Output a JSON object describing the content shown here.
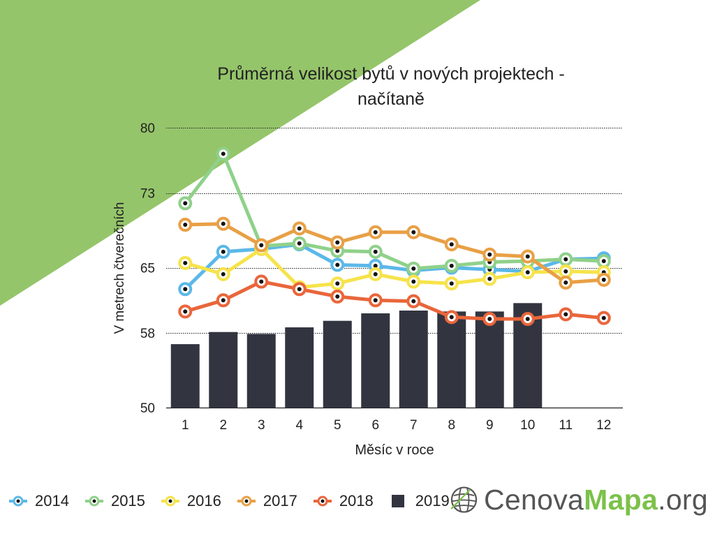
{
  "chart_data": {
    "type": "line",
    "title_line1": "Průměrná velikost bytů v nových projektech -",
    "title_line2": "načítaně",
    "xlabel": "Měsíc v roce",
    "ylabel": "V metrech čtverečních",
    "categories": [
      "1",
      "2",
      "3",
      "4",
      "5",
      "6",
      "7",
      "8",
      "9",
      "10",
      "11",
      "12"
    ],
    "y_ticks": [
      "50",
      "58",
      "65",
      "73",
      "80"
    ],
    "ylim": [
      50,
      80
    ],
    "grid": "horizontal dotted",
    "legend_position": "bottom",
    "bar_series": {
      "name": "2019",
      "color": "#323540",
      "values": [
        56.8,
        58.1,
        57.9,
        58.6,
        59.3,
        60.1,
        60.4,
        60.3,
        60.3,
        61.2,
        null,
        null
      ]
    },
    "series": [
      {
        "name": "2014",
        "color": "#5bb8e8",
        "values": [
          62.7,
          66.7,
          67.0,
          67.5,
          65.3,
          65.2,
          64.7,
          65.0,
          64.8,
          64.6,
          65.9,
          66.0
        ]
      },
      {
        "name": "2015",
        "color": "#8fd18a",
        "values": [
          71.9,
          77.2,
          67.3,
          67.6,
          66.8,
          66.7,
          64.9,
          65.2,
          65.6,
          65.7,
          65.9,
          65.7
        ]
      },
      {
        "name": "2016",
        "color": "#f6e34a",
        "values": [
          65.5,
          64.3,
          67.0,
          62.9,
          63.3,
          64.3,
          63.5,
          63.3,
          63.8,
          64.5,
          64.6,
          64.5
        ]
      },
      {
        "name": "2017",
        "color": "#e8a045",
        "values": [
          69.6,
          69.7,
          67.4,
          69.2,
          67.7,
          68.8,
          68.8,
          67.5,
          66.4,
          66.2,
          63.4,
          63.7
        ]
      },
      {
        "name": "2018",
        "color": "#e9663b",
        "values": [
          60.3,
          61.5,
          63.5,
          62.7,
          61.9,
          61.5,
          61.4,
          59.7,
          59.5,
          59.5,
          60.0,
          59.6
        ]
      }
    ]
  },
  "legend": [
    {
      "label": "2014",
      "color": "#5bb8e8",
      "kind": "line"
    },
    {
      "label": "2015",
      "color": "#8fd18a",
      "kind": "line"
    },
    {
      "label": "2016",
      "color": "#f6e34a",
      "kind": "line"
    },
    {
      "label": "2017",
      "color": "#e8a045",
      "kind": "line"
    },
    {
      "label": "2018",
      "color": "#e9663b",
      "kind": "line"
    },
    {
      "label": "2019",
      "color": "#323540",
      "kind": "bar"
    }
  ],
  "logo": {
    "part1": "Cenova",
    "part2": "Mapa",
    "part3": ".org",
    "icon": "globe-icon"
  },
  "colors": {
    "background_accent": "#95c56a",
    "grid": "#222222",
    "marker_dot": "#111111"
  }
}
